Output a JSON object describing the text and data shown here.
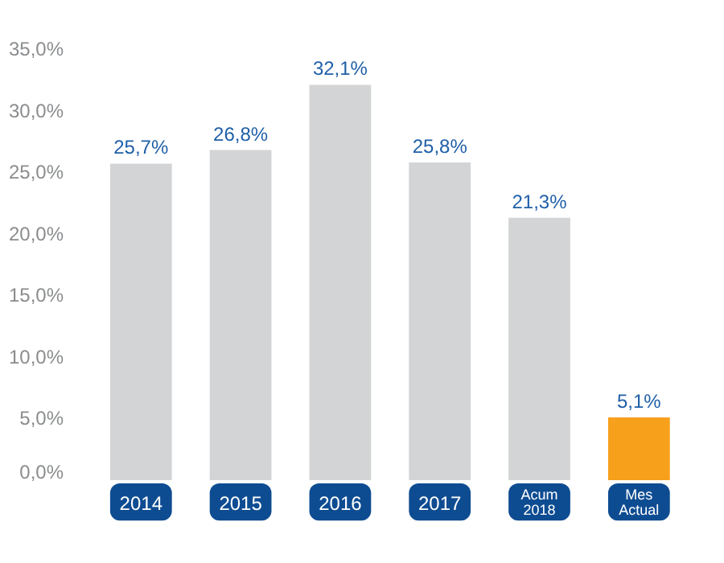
{
  "chart_data": {
    "type": "bar",
    "categories": [
      "2014",
      "2015",
      "2016",
      "2017",
      "Acum\n2018",
      "Mes\nActual"
    ],
    "values": [
      25.7,
      26.8,
      32.1,
      25.8,
      21.3,
      5.1
    ],
    "colors": [
      "#d3d4d6",
      "#d3d4d6",
      "#d3d4d6",
      "#d3d4d6",
      "#d3d4d6",
      "#f7a01b"
    ],
    "value_labels": [
      "25,7%",
      "26,8%",
      "32,1%",
      "25,8%",
      "21,3%",
      "5,1%"
    ],
    "ylim": [
      0,
      35
    ],
    "yticks": [
      {
        "value": 0,
        "label": "0,0%"
      },
      {
        "value": 5,
        "label": "5,0%"
      },
      {
        "value": 10,
        "label": "10,0%"
      },
      {
        "value": 15,
        "label": "15,0%"
      },
      {
        "value": 20,
        "label": "20,0%"
      },
      {
        "value": 25,
        "label": "25,0%"
      },
      {
        "value": 30,
        "label": "30,0%"
      },
      {
        "value": 35,
        "label": "35,0%"
      }
    ],
    "grid": false
  }
}
